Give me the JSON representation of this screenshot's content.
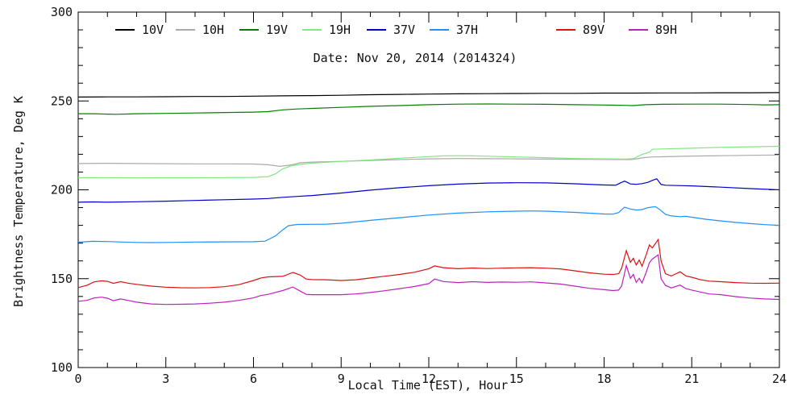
{
  "chart_data": {
    "type": "line",
    "title": "Date: Nov 20, 2014 (2014324)",
    "xlabel": "Local Time (EST), Hour",
    "ylabel": "Brightness Temperature, Deg K",
    "xlim": [
      0,
      24
    ],
    "ylim": [
      100,
      300
    ],
    "x_major_ticks": [
      0,
      3,
      6,
      9,
      12,
      15,
      18,
      21,
      24
    ],
    "x_minor_step": 1,
    "y_major_ticks": [
      100,
      150,
      200,
      250,
      300
    ],
    "y_minor_step": 10,
    "grid": false,
    "legend_position": "top-inside",
    "series": [
      {
        "name": "10V",
        "color": "#000000",
        "x": [
          0,
          1,
          2,
          3,
          4,
          5,
          6,
          7,
          8,
          9,
          10,
          11,
          12,
          13,
          14,
          15,
          16,
          17,
          18,
          19,
          20,
          21,
          22,
          23,
          24
        ],
        "y": [
          252.2,
          252.3,
          252.3,
          252.4,
          252.5,
          252.5,
          252.7,
          252.9,
          253.0,
          253.2,
          253.5,
          253.7,
          253.9,
          254.0,
          254.1,
          254.2,
          254.3,
          254.3,
          254.4,
          254.4,
          254.5,
          254.5,
          254.6,
          254.6,
          254.7
        ]
      },
      {
        "name": "10H",
        "color": "#aaaaaa",
        "x": [
          0,
          1,
          2,
          3,
          4,
          5,
          6,
          6.5,
          6.9,
          7.3,
          7.6,
          8,
          9,
          10,
          11,
          12,
          13,
          14,
          15,
          16,
          17,
          18,
          18.9,
          19.1,
          19.4,
          19.7,
          20,
          21,
          22,
          23,
          24
        ],
        "y": [
          214.8,
          214.9,
          214.8,
          214.7,
          214.6,
          214.6,
          214.5,
          214.1,
          213.2,
          214.0,
          215.2,
          215.6,
          216.0,
          216.5,
          217.0,
          217.4,
          217.6,
          217.5,
          217.4,
          217.3,
          217.2,
          217.1,
          217.0,
          217.4,
          218.2,
          218.5,
          218.6,
          219.0,
          219.2,
          219.4,
          219.6
        ]
      },
      {
        "name": "19V",
        "color": "#008000",
        "x": [
          0,
          0.5,
          1,
          1.3,
          2,
          3,
          4,
          5,
          6,
          6.5,
          7,
          7.5,
          8,
          9,
          10,
          11,
          12,
          13,
          14,
          15,
          16,
          17,
          18,
          18.8,
          19,
          19.4,
          20,
          21,
          22,
          23,
          23.5,
          24
        ],
        "y": [
          242.8,
          242.8,
          242.6,
          242.5,
          242.8,
          243.0,
          243.2,
          243.5,
          243.7,
          244.0,
          245.0,
          245.5,
          245.8,
          246.4,
          247.0,
          247.4,
          247.9,
          248.2,
          248.3,
          248.2,
          248.1,
          247.9,
          247.7,
          247.5,
          247.4,
          247.9,
          248.1,
          248.2,
          248.2,
          248.0,
          247.8,
          247.9
        ]
      },
      {
        "name": "19H",
        "color": "#7fe87f",
        "x": [
          0,
          1,
          2,
          3,
          4,
          5,
          6,
          6.5,
          6.75,
          7,
          7.3,
          7.6,
          8,
          9,
          10,
          11,
          12,
          12.5,
          13,
          13.5,
          14,
          15,
          16,
          17,
          18,
          18.75,
          19,
          19.3,
          19.55,
          19.65,
          20,
          20.5,
          21,
          22,
          23,
          24
        ],
        "y": [
          206.8,
          206.9,
          206.7,
          206.8,
          206.8,
          206.9,
          207.0,
          207.4,
          209.0,
          211.8,
          213.6,
          214.3,
          215.0,
          216.0,
          216.8,
          217.8,
          218.7,
          219.1,
          219.2,
          219.1,
          218.9,
          218.5,
          218.1,
          217.6,
          217.4,
          217.3,
          217.5,
          219.9,
          221.2,
          222.8,
          223.0,
          223.2,
          223.4,
          223.9,
          224.2,
          224.5
        ]
      },
      {
        "name": "37V",
        "color": "#0000cd",
        "x": [
          0,
          0.5,
          1,
          2,
          3,
          4,
          5,
          6,
          6.5,
          7,
          7.5,
          8,
          9,
          10,
          11,
          12,
          13,
          14,
          15,
          16,
          17,
          18,
          18.4,
          18.55,
          18.7,
          18.9,
          19.1,
          19.3,
          19.5,
          19.65,
          19.8,
          19.95,
          20.1,
          20.5,
          21,
          22,
          23,
          24
        ],
        "y": [
          193.0,
          193.2,
          193.0,
          193.3,
          193.6,
          194.0,
          194.4,
          194.8,
          195.1,
          195.8,
          196.3,
          196.8,
          198.2,
          199.8,
          201.2,
          202.3,
          203.2,
          203.8,
          204.0,
          203.9,
          203.4,
          202.7,
          202.6,
          203.8,
          204.9,
          203.3,
          203.1,
          203.5,
          204.2,
          205.3,
          206.2,
          203.0,
          202.6,
          202.4,
          202.2,
          201.5,
          200.7,
          200.0
        ]
      },
      {
        "name": "37H",
        "color": "#1e90ff",
        "x": [
          0,
          0.5,
          1,
          1.5,
          2,
          2.5,
          3,
          4,
          5,
          6,
          6.4,
          6.75,
          7,
          7.2,
          7.5,
          8,
          8.5,
          9,
          10,
          11,
          12,
          13,
          14,
          15,
          15.5,
          16,
          17,
          18,
          18.3,
          18.5,
          18.7,
          18.9,
          19.1,
          19.3,
          19.5,
          19.75,
          19.9,
          20.1,
          20.3,
          20.6,
          20.8,
          21,
          21.5,
          22,
          22.5,
          23,
          23.5,
          24
        ],
        "y": [
          170.5,
          171.0,
          170.9,
          170.6,
          170.4,
          170.3,
          170.4,
          170.6,
          170.7,
          170.8,
          171.1,
          174.0,
          177.5,
          179.8,
          180.5,
          180.6,
          180.7,
          181.2,
          182.8,
          184.3,
          185.8,
          186.9,
          187.6,
          188.0,
          188.1,
          188.0,
          187.3,
          186.4,
          186.3,
          187.2,
          190.2,
          189.2,
          188.6,
          188.9,
          190.0,
          190.5,
          189.0,
          186.2,
          185.3,
          184.9,
          185.1,
          184.6,
          183.4,
          182.5,
          181.7,
          181.0,
          180.4,
          180.0
        ]
      },
      {
        "name": "89V",
        "color": "#dd1111",
        "x": [
          0,
          0.3,
          0.55,
          0.8,
          1,
          1.2,
          1.45,
          1.7,
          2,
          2.5,
          3,
          3.5,
          4,
          4.5,
          5,
          5.5,
          6,
          6.25,
          6.5,
          7,
          7.35,
          7.6,
          7.8,
          8,
          8.5,
          9,
          9.5,
          10,
          10.5,
          11,
          11.5,
          12,
          12.2,
          12.5,
          13,
          13.5,
          14,
          14.5,
          15,
          15.5,
          16,
          16.5,
          17,
          17.5,
          18,
          18.3,
          18.5,
          18.6,
          18.76,
          18.9,
          19.0,
          19.1,
          19.2,
          19.3,
          19.45,
          19.55,
          19.65,
          19.85,
          19.95,
          20.1,
          20.3,
          20.6,
          20.8,
          21,
          21.3,
          21.6,
          22,
          22.5,
          23,
          23.5,
          24
        ],
        "y": [
          145.0,
          146.3,
          148.2,
          148.8,
          148.5,
          147.4,
          148.3,
          147.5,
          146.8,
          145.8,
          145.2,
          144.9,
          144.8,
          145.0,
          145.5,
          146.6,
          149.0,
          150.4,
          151.0,
          151.3,
          153.5,
          152.0,
          149.8,
          149.5,
          149.4,
          149.0,
          149.4,
          150.4,
          151.4,
          152.4,
          153.6,
          155.6,
          157.2,
          156.2,
          155.6,
          156.0,
          155.7,
          155.9,
          156.1,
          156.2,
          155.9,
          155.5,
          154.4,
          153.3,
          152.5,
          152.4,
          152.8,
          156.0,
          165.8,
          159.2,
          161.5,
          157.7,
          160.5,
          157.0,
          164.0,
          169.0,
          167.3,
          172.0,
          160.0,
          152.8,
          151.5,
          153.9,
          151.5,
          150.8,
          149.4,
          148.6,
          148.3,
          147.8,
          147.5,
          147.4,
          147.5
        ]
      },
      {
        "name": "89H",
        "color": "#bb22bb",
        "x": [
          0,
          0.3,
          0.55,
          0.8,
          1,
          1.2,
          1.45,
          1.7,
          2,
          2.5,
          3,
          3.5,
          4,
          4.5,
          5,
          5.5,
          6,
          6.25,
          6.5,
          7,
          7.35,
          7.6,
          7.8,
          8,
          8.5,
          9,
          9.5,
          10,
          10.5,
          11,
          11.5,
          12,
          12.2,
          12.5,
          13,
          13.5,
          14,
          14.5,
          15,
          15.5,
          16,
          16.5,
          17,
          17.5,
          18,
          18.3,
          18.5,
          18.6,
          18.76,
          18.9,
          19.0,
          19.1,
          19.2,
          19.3,
          19.45,
          19.55,
          19.65,
          19.85,
          19.95,
          20.1,
          20.3,
          20.6,
          20.8,
          21,
          21.3,
          21.6,
          22,
          22.5,
          23,
          23.5,
          24
        ],
        "y": [
          137.3,
          137.8,
          139.2,
          139.6,
          139.0,
          137.6,
          138.6,
          137.8,
          136.8,
          135.8,
          135.5,
          135.6,
          135.8,
          136.2,
          136.8,
          137.8,
          139.2,
          140.5,
          141.2,
          143.3,
          145.3,
          143.0,
          141.2,
          141.0,
          141.0,
          141.0,
          141.4,
          142.2,
          143.2,
          144.4,
          145.6,
          147.2,
          149.8,
          148.4,
          147.8,
          148.3,
          147.9,
          148.1,
          148.0,
          148.2,
          147.6,
          147.0,
          145.8,
          144.6,
          143.8,
          143.3,
          143.6,
          146.0,
          157.4,
          150.2,
          152.4,
          147.9,
          150.2,
          147.6,
          154.0,
          159.0,
          161.0,
          163.4,
          150.0,
          146.2,
          144.8,
          146.4,
          144.4,
          143.6,
          142.5,
          141.4,
          141.0,
          139.9,
          139.1,
          138.6,
          138.3
        ]
      }
    ]
  }
}
